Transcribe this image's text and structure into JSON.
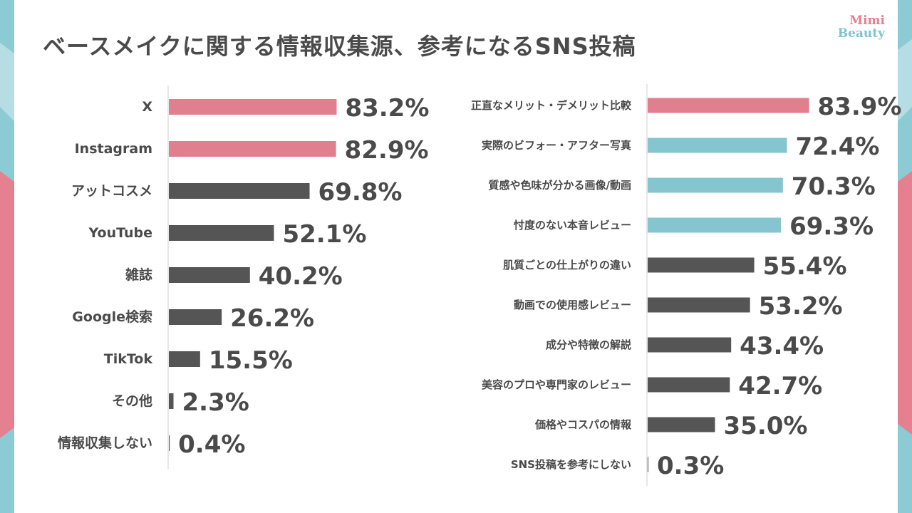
{
  "header": {
    "title": "ベースメイクに関する情報収集源、参考になるSNS投稿"
  },
  "logo": {
    "line1": "Mimi",
    "line2": "Beauty"
  },
  "colors": {
    "highlight_pink": "#e0808f",
    "highlight_teal": "#84c5cf",
    "default_bar": "#555555",
    "axis": "#cfcfcf",
    "label_text": "#4a4a4a"
  },
  "chart_data": [
    {
      "type": "bar",
      "orientation": "horizontal",
      "title": "",
      "value_unit": "%",
      "categories": [
        "X",
        "Instagram",
        "アットコスメ",
        "YouTube",
        "雑誌",
        "Google検索",
        "TikTok",
        "その他",
        "情報収集しない"
      ],
      "values": [
        83.2,
        82.9,
        69.8,
        52.1,
        40.2,
        26.2,
        15.5,
        2.3,
        0.4
      ],
      "data_labels": [
        "83.2%",
        "82.9%",
        "69.8%",
        "52.1%",
        "40.2%",
        "26.2%",
        "15.5%",
        "2.3%",
        "0.4%"
      ],
      "bar_colors": [
        "pink",
        "pink",
        "default",
        "default",
        "default",
        "default",
        "default",
        "default",
        "default"
      ],
      "grid": false,
      "legend": "none"
    },
    {
      "type": "bar",
      "orientation": "horizontal",
      "title": "",
      "value_unit": "%",
      "categories": [
        "正直なメリット・デメリット比較",
        "実際のビフォー・アフター写真",
        "質感や色味が分かる画像/動画",
        "忖度のない本音レビュー",
        "肌質ごとの仕上がりの違い",
        "動画での使用感レビュー",
        "成分や特徴の解説",
        "美容のプロや専門家のレビュー",
        "価格やコスパの情報",
        "SNS投稿を参考にしない"
      ],
      "values": [
        83.9,
        72.4,
        70.3,
        69.3,
        55.4,
        53.2,
        43.4,
        42.7,
        35.0,
        0.3
      ],
      "data_labels": [
        "83.9%",
        "72.4%",
        "70.3%",
        "69.3%",
        "55.4%",
        "53.2%",
        "43.4%",
        "42.7%",
        "35.0%",
        "0.3%"
      ],
      "bar_colors": [
        "pink",
        "teal",
        "teal",
        "teal",
        "default",
        "default",
        "default",
        "default",
        "default",
        "default"
      ],
      "grid": false,
      "legend": "none"
    }
  ]
}
